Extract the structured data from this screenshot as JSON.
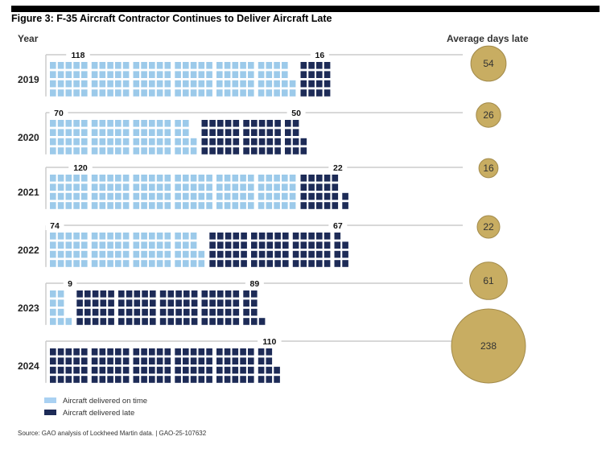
{
  "title": "Figure 3: F-35 Aircraft Contractor Continues to Deliver Aircraft Late",
  "year_header": "Year",
  "bubble_header": "Average days late",
  "legend": [
    {
      "label": "Aircraft delivered on time",
      "color": "#9ccaea"
    },
    {
      "label": "Aircraft delivered late",
      "color": "#1d2b57"
    }
  ],
  "source": "Source: GAO analysis of Lockheed Martin data.  |  GAO-25-107632",
  "colors": {
    "on_time": "#9ccaea",
    "late": "#1d2b57",
    "bubble": "#c8ad62",
    "bubble_border": "#a38b4b"
  },
  "chart_data": {
    "type": "bar",
    "stacked": true,
    "orientation": "horizontal",
    "style": "waffle (one square per aircraft)",
    "categories": [
      "2019",
      "2020",
      "2021",
      "2022",
      "2023",
      "2024"
    ],
    "series": [
      {
        "name": "Aircraft delivered on time",
        "values": [
          118,
          70,
          120,
          74,
          9,
          0
        ]
      },
      {
        "name": "Aircraft delivered late",
        "values": [
          16,
          50,
          22,
          67,
          89,
          110
        ]
      }
    ],
    "on_time_labels": [
      "118",
      "70",
      "120",
      "74",
      "9",
      ""
    ],
    "late_labels": [
      "16",
      "50",
      "22",
      "67",
      "89",
      "110"
    ],
    "bubbles": {
      "name": "Average days late",
      "values": [
        54,
        26,
        16,
        22,
        61,
        238
      ],
      "labels": [
        "54",
        "26",
        "16",
        "22",
        "61",
        "238"
      ]
    }
  }
}
